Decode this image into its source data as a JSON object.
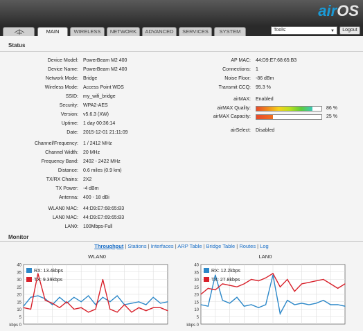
{
  "logo": {
    "air": "air",
    "os": "OS"
  },
  "tabs": [
    "MAIN",
    "WIRELESS",
    "NETWORK",
    "ADVANCED",
    "SERVICES",
    "SYSTEM"
  ],
  "tools": {
    "label": "Tools:"
  },
  "logout": "Logout",
  "status": {
    "title": "Status",
    "left": [
      {
        "label": "Device Model:",
        "value": "PowerBeam M2 400"
      },
      {
        "label": "Device Name:",
        "value": "PowerBeam M2 400"
      },
      {
        "label": "Network Mode:",
        "value": "Bridge"
      },
      {
        "label": "Wireless Mode:",
        "value": "Access Point WDS"
      },
      {
        "label": "SSID:",
        "value": "my_wifi_bridge"
      },
      {
        "label": "Security:",
        "value": "WPA2-AES"
      },
      {
        "label": "Version:",
        "value": "v5.6.3 (XW)"
      },
      {
        "label": "Uptime:",
        "value": "1 day 00:36:14"
      },
      {
        "label": "Date:",
        "value": "2015-12-01 21:11:09"
      },
      {
        "label": "Channel/Frequency:",
        "value": "1 / 2412 MHz"
      },
      {
        "label": "Channel Width:",
        "value": "20 MHz"
      },
      {
        "label": "Frequency Band:",
        "value": "2402 - 2422 MHz"
      },
      {
        "label": "Distance:",
        "value": "0.6 miles (0.9 km)"
      },
      {
        "label": "TX/RX Chains:",
        "value": "2X2"
      },
      {
        "label": "TX Power:",
        "value": "-4 dBm"
      },
      {
        "label": "Antenna:",
        "value": "400 - 18 dBi"
      },
      {
        "label": "WLAN0 MAC:",
        "value": "44:D9:E7:68:65:B3"
      },
      {
        "label": "LAN0 MAC:",
        "value": "44:D9:E7:69:65:B3"
      },
      {
        "label": "LAN0:",
        "value": "100Mbps-Full"
      }
    ],
    "right": [
      {
        "label": "AP MAC:",
        "value": "44:D9:E7:68:65:B3"
      },
      {
        "label": "Connections:",
        "value": "1"
      },
      {
        "label": "Noise Floor:",
        "value": "-86 dBm"
      },
      {
        "label": "Transmit CCQ:",
        "value": "95.3 %"
      },
      {
        "label": "airMAX:",
        "value": "Enabled"
      },
      {
        "label": "airMAX Quality:",
        "value": "86 %",
        "level": 0.86
      },
      {
        "label": "airMAX Capacity:",
        "value": "25 %",
        "level": 0.25
      },
      {
        "label": "airSelect:",
        "value": "Disabled"
      }
    ]
  },
  "monitor": {
    "title": "Monitor",
    "links": [
      "Throughput",
      "Stations",
      "Interfaces",
      "ARP Table",
      "Bridge Table",
      "Routes",
      "Log"
    ]
  },
  "colors": {
    "rx": "#2b87c8",
    "tx": "#d8202a",
    "accent": "#1a9ad6"
  },
  "chart_data": [
    {
      "type": "line",
      "title": "WLAN0",
      "ylabel": "kbps",
      "ylim": [
        0,
        40
      ],
      "yticks": [
        0,
        5,
        10,
        15,
        20,
        25,
        30,
        35,
        40
      ],
      "x": [
        0,
        1,
        2,
        3,
        4,
        5,
        6,
        7,
        8,
        9,
        10,
        11,
        12,
        13,
        14,
        15,
        16,
        17,
        18,
        19,
        20
      ],
      "series": [
        {
          "name": "RX: 13.4kbps",
          "values": [
            12,
            18,
            19,
            17,
            13,
            18,
            14,
            18,
            15,
            19,
            13,
            18,
            15,
            19,
            13,
            14,
            15,
            13,
            18,
            14,
            15
          ]
        },
        {
          "name": "TX: 9.39kbps",
          "values": [
            11,
            10,
            34,
            16,
            14,
            11,
            15,
            10,
            11,
            8,
            10,
            30,
            10,
            8,
            13,
            8,
            11,
            9,
            11,
            11,
            9
          ]
        }
      ]
    },
    {
      "type": "line",
      "title": "LAN0",
      "ylabel": "kbps",
      "ylim": [
        0,
        40
      ],
      "yticks": [
        0,
        5,
        10,
        15,
        20,
        25,
        30,
        35,
        40
      ],
      "x": [
        0,
        1,
        2,
        3,
        4,
        5,
        6,
        7,
        8,
        9,
        10,
        11,
        12,
        13,
        14,
        15,
        16,
        17,
        18,
        19,
        20
      ],
      "series": [
        {
          "name": "RX: 12.2kbps",
          "values": [
            13,
            12,
            33,
            16,
            14,
            18,
            12,
            13,
            11,
            13,
            33,
            7,
            16,
            13,
            14,
            13,
            14,
            16,
            13,
            13,
            12
          ]
        },
        {
          "name": "TX: 27.8kbps",
          "values": [
            20,
            24,
            23,
            27,
            26,
            25,
            27,
            30,
            29,
            31,
            34,
            25,
            30,
            22,
            27,
            28,
            29,
            30,
            27,
            24,
            27
          ]
        }
      ]
    }
  ]
}
